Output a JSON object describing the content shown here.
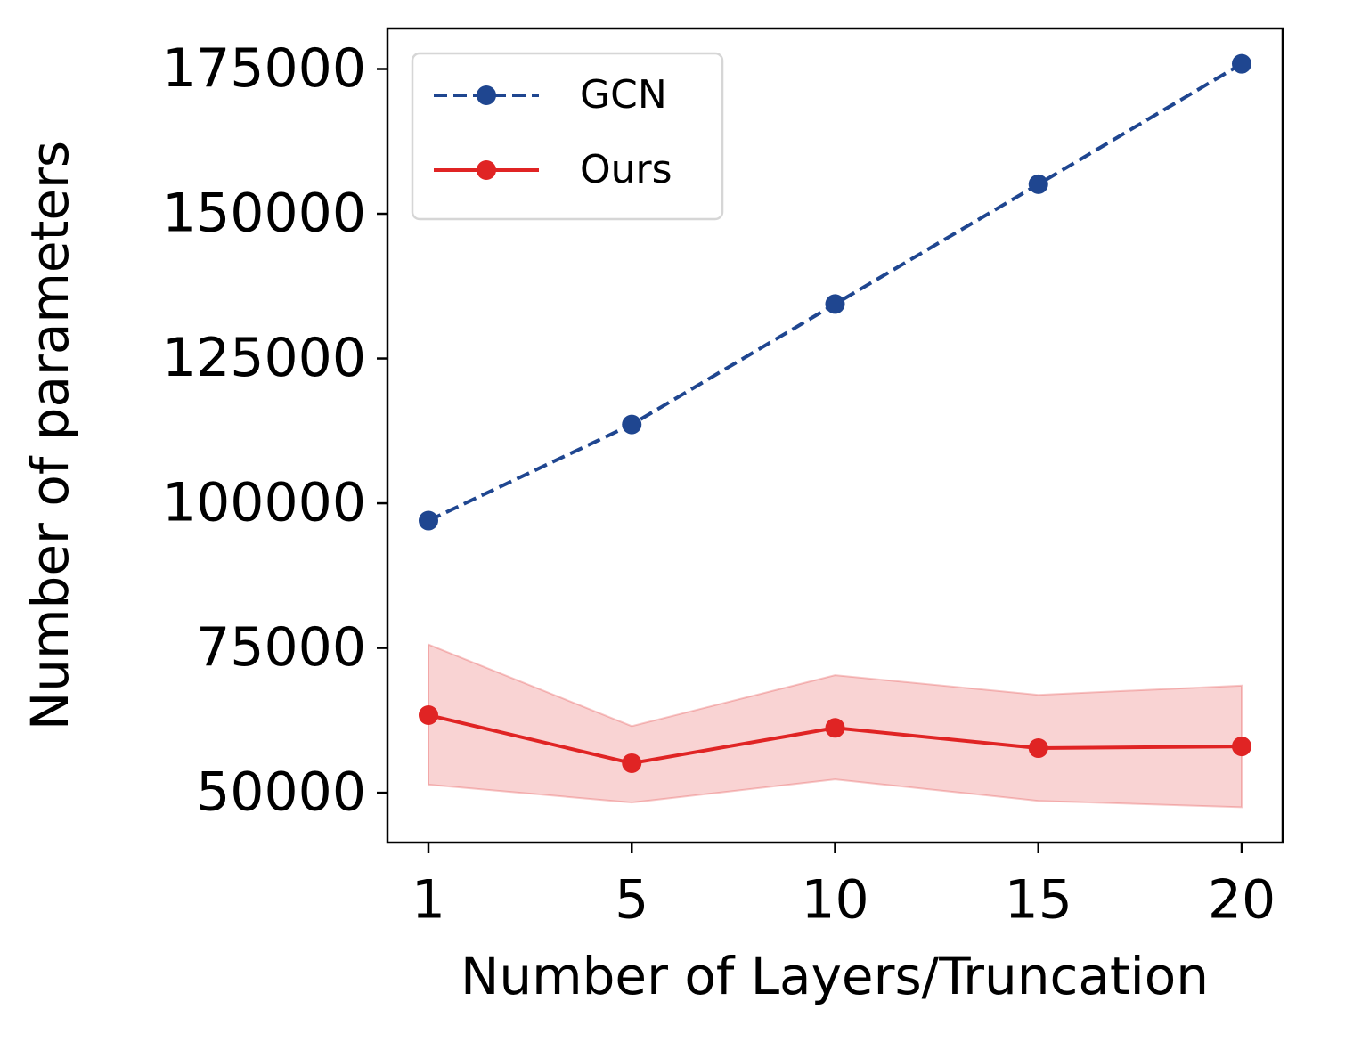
{
  "chart_data": {
    "type": "line",
    "xlabel": "Number of Layers/Truncation",
    "ylabel": "Number of parameters",
    "categories": [
      "1",
      "5",
      "10",
      "15",
      "20"
    ],
    "ylim": [
      41400,
      182000
    ],
    "yticks": [
      50000,
      75000,
      100000,
      125000,
      150000,
      175000
    ],
    "legend": "upper left",
    "series": [
      {
        "name": "GCN",
        "color": "#1f4690",
        "linestyle": "dashed",
        "values": [
          97000,
          113600,
          134400,
          155100,
          175900
        ]
      },
      {
        "name": "Ours",
        "color": "#e02424",
        "linestyle": "solid",
        "values": [
          63400,
          55100,
          61200,
          57700,
          58000
        ],
        "lower": [
          51400,
          48300,
          52300,
          48600,
          47500
        ],
        "upper": [
          75600,
          61500,
          70300,
          66900,
          68500
        ]
      }
    ]
  }
}
